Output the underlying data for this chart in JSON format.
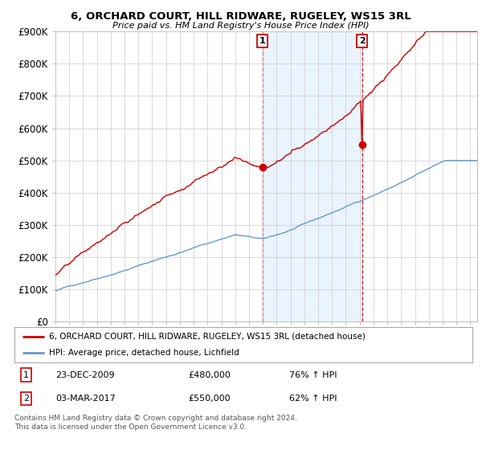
{
  "title": "6, ORCHARD COURT, HILL RIDWARE, RUGELEY, WS15 3RL",
  "subtitle": "Price paid vs. HM Land Registry's House Price Index (HPI)",
  "ylabel_ticks": [
    "£0",
    "£100K",
    "£200K",
    "£300K",
    "£400K",
    "£500K",
    "£600K",
    "£700K",
    "£800K",
    "£900K"
  ],
  "ylim": [
    0,
    900000
  ],
  "xlim_start": 1995.0,
  "xlim_end": 2025.5,
  "sale1_date": 2009.97,
  "sale1_price": 480000,
  "sale1_label": "1",
  "sale2_date": 2017.17,
  "sale2_price": 550000,
  "sale2_label": "2",
  "legend_line1": "6, ORCHARD COURT, HILL RIDWARE, RUGELEY, WS15 3RL (detached house)",
  "legend_line2": "HPI: Average price, detached house, Lichfield",
  "table_row1": [
    "1",
    "23-DEC-2009",
    "£480,000",
    "76% ↑ HPI"
  ],
  "table_row2": [
    "2",
    "03-MAR-2017",
    "£550,000",
    "62% ↑ HPI"
  ],
  "footnote": "Contains HM Land Registry data © Crown copyright and database right 2024.\nThis data is licensed under the Open Government Licence v3.0.",
  "red_color": "#cc0000",
  "blue_color": "#6699cc",
  "shade_color": "#ddeeff",
  "vline_color": "#cc0000",
  "background_color": "#ffffff",
  "grid_color": "#cccccc"
}
